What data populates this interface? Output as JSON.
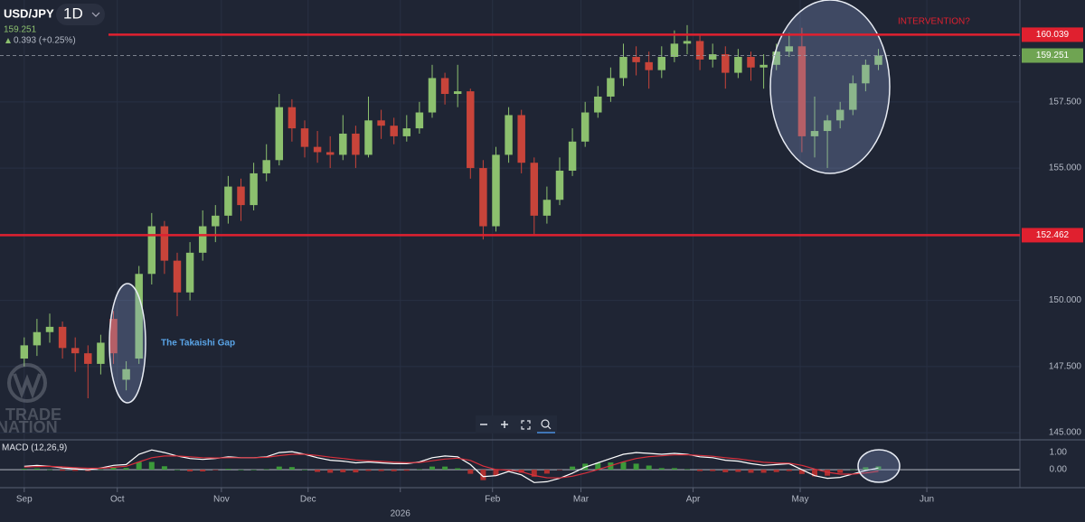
{
  "header": {
    "symbol": "USD/JPY",
    "interval": "1D",
    "price": 159.251,
    "change": "0.393 (+0.25%)",
    "watermark": [
      "TRADE",
      "NATION"
    ]
  },
  "chart_data": [
    {
      "type": "candlestick",
      "annotations": [
        "The Takaishi Gap",
        "INTERVENTION?"
      ],
      "up_color": "#8cc06e",
      "down_color": "#c8443a",
      "x": [
        0,
        3,
        6,
        9,
        12,
        15,
        18,
        21,
        24,
        27,
        30,
        33,
        36,
        39,
        42,
        45,
        48,
        51,
        54,
        57,
        60,
        63,
        66,
        69,
        72,
        75,
        78,
        81,
        84,
        87,
        90,
        93,
        96,
        99,
        102,
        105,
        108,
        111,
        114,
        117,
        120,
        123,
        126,
        129,
        132,
        135,
        138,
        141,
        144,
        147,
        150,
        153,
        156,
        159,
        162,
        165,
        168,
        171,
        174,
        177,
        180,
        183,
        186,
        189,
        192,
        195,
        198,
        201
      ],
      "open": [
        147.8,
        148.3,
        148.8,
        149.0,
        148.2,
        148.0,
        147.6,
        149.3,
        147.0,
        147.8,
        151.0,
        152.8,
        151.5,
        150.3,
        151.8,
        152.8,
        153.2,
        154.3,
        153.6,
        154.8,
        155.3,
        157.3,
        156.5,
        155.8,
        155.6,
        155.5,
        156.3,
        155.5,
        156.8,
        156.6,
        156.2,
        156.5,
        157.1,
        158.4,
        157.8,
        157.9,
        155.0,
        152.8,
        155.5,
        157.0,
        155.2,
        153.2,
        153.8,
        154.9,
        156.0,
        157.1,
        157.7,
        158.4,
        159.2,
        159.0,
        158.7,
        159.2,
        159.7,
        159.8,
        159.1,
        159.3,
        158.6,
        159.2,
        158.8,
        158.9,
        159.4,
        159.6,
        156.2,
        156.4,
        156.8,
        157.2,
        158.2,
        158.9
      ],
      "high": [
        148.6,
        149.3,
        149.5,
        149.2,
        148.6,
        148.3,
        148.7,
        149.6,
        147.7,
        151.3,
        153.3,
        153.0,
        151.8,
        152.2,
        153.4,
        153.6,
        154.7,
        154.6,
        155.2,
        155.9,
        157.8,
        157.6,
        156.8,
        156.4,
        156.2,
        157.0,
        156.6,
        157.7,
        157.2,
        156.9,
        157.0,
        157.5,
        158.9,
        158.6,
        158.9,
        158.0,
        155.3,
        155.8,
        157.3,
        157.2,
        155.4,
        154.3,
        155.4,
        156.5,
        157.5,
        158.1,
        158.8,
        159.7,
        159.6,
        159.4,
        159.6,
        160.2,
        160.4,
        160.0,
        159.7,
        159.6,
        159.5,
        159.4,
        159.3,
        159.7,
        160.1,
        160.3,
        157.7,
        157.0,
        157.5,
        158.5,
        159.1,
        159.5
      ],
      "low": [
        147.5,
        147.9,
        148.4,
        147.8,
        147.3,
        146.3,
        147.2,
        147.6,
        146.6,
        147.6,
        150.6,
        151.0,
        149.4,
        150.0,
        151.5,
        152.2,
        152.9,
        153.0,
        153.4,
        154.5,
        155.1,
        156.0,
        155.4,
        155.2,
        155.0,
        155.3,
        155.0,
        155.4,
        156.1,
        155.9,
        156.0,
        156.3,
        156.9,
        157.4,
        157.3,
        154.6,
        152.3,
        152.6,
        155.2,
        154.8,
        152.5,
        152.9,
        153.6,
        154.7,
        155.8,
        156.9,
        157.5,
        158.1,
        158.5,
        158.0,
        158.4,
        159.0,
        159.3,
        158.7,
        158.8,
        158.0,
        158.4,
        158.3,
        158.0,
        158.7,
        159.2,
        155.6,
        155.4,
        155.0,
        156.5,
        157.0,
        157.9,
        158.7
      ],
      "close": [
        148.3,
        148.8,
        149.0,
        148.2,
        148.0,
        147.6,
        148.4,
        148.0,
        147.4,
        151.0,
        152.8,
        151.5,
        150.3,
        151.8,
        152.8,
        153.2,
        154.3,
        153.6,
        154.8,
        155.3,
        157.3,
        156.5,
        155.8,
        155.6,
        155.5,
        156.3,
        155.5,
        156.8,
        156.6,
        156.2,
        156.5,
        157.1,
        158.4,
        157.8,
        157.9,
        155.0,
        152.8,
        155.5,
        157.0,
        155.2,
        153.2,
        153.8,
        154.9,
        156.0,
        157.1,
        157.7,
        158.4,
        159.2,
        159.0,
        158.7,
        159.2,
        159.7,
        159.8,
        159.1,
        159.3,
        158.6,
        159.2,
        158.8,
        158.9,
        159.4,
        159.6,
        156.2,
        156.4,
        156.8,
        157.2,
        158.2,
        158.9,
        159.25
      ],
      "xlim": [
        -5.7,
        234.3
      ],
      "ylim": [
        144.73,
        161.35
      ],
      "xticks": [
        {
          "value": 0,
          "label": "Sep"
        },
        {
          "value": 21.9,
          "label": "Oct"
        },
        {
          "value": 46.4,
          "label": "Nov"
        },
        {
          "value": 66.8,
          "label": "Dec"
        },
        {
          "value": 88.5,
          "label": "2026"
        },
        {
          "value": 110.2,
          "label": "Feb"
        },
        {
          "value": 131,
          "label": "Mar"
        },
        {
          "value": 157.4,
          "label": "Apr"
        },
        {
          "value": 182.6,
          "label": "May"
        },
        {
          "value": 212.4,
          "label": "Jun"
        }
      ],
      "yticks": [
        {
          "value": 145,
          "label": "145.000"
        },
        {
          "value": 147.5,
          "label": "147.500"
        },
        {
          "value": 150,
          "label": "150.000"
        },
        {
          "value": 152.5,
          "label": "152.500"
        },
        {
          "value": 155,
          "label": "155.000"
        },
        {
          "value": 157.5,
          "label": "157.500"
        }
      ],
      "levels": [
        {
          "value": 160.039,
          "color": "#e0202f"
        },
        {
          "value": 152.462,
          "color": "#e0202f"
        }
      ],
      "last_price": 159.251,
      "last_price_color": "#6fa452",
      "grid": true
    },
    {
      "type": "line",
      "title": "MACD (12,26,9)",
      "series": [
        {
          "color": "#ffffff",
          "values": [
            0.2,
            0.25,
            0.2,
            0.1,
            0.05,
            0.0,
            0.1,
            0.25,
            0.3,
            0.9,
            1.15,
            1.0,
            0.8,
            0.65,
            0.6,
            0.65,
            0.75,
            0.7,
            0.7,
            0.75,
            1.0,
            1.05,
            0.9,
            0.7,
            0.55,
            0.5,
            0.4,
            0.45,
            0.4,
            0.35,
            0.35,
            0.45,
            0.7,
            0.8,
            0.75,
            0.3,
            -0.4,
            -0.35,
            -0.1,
            -0.3,
            -0.75,
            -0.7,
            -0.5,
            -0.2,
            0.15,
            0.4,
            0.65,
            0.9,
            1.0,
            0.95,
            0.9,
            0.95,
            0.9,
            0.75,
            0.7,
            0.55,
            0.5,
            0.35,
            0.25,
            0.3,
            0.35,
            0.0,
            -0.35,
            -0.5,
            -0.45,
            -0.25,
            -0.05,
            0.1
          ]
        },
        {
          "color": "#d8303c",
          "values": [
            0.15,
            0.18,
            0.19,
            0.16,
            0.12,
            0.08,
            0.08,
            0.14,
            0.2,
            0.45,
            0.7,
            0.8,
            0.8,
            0.75,
            0.7,
            0.68,
            0.7,
            0.7,
            0.7,
            0.72,
            0.82,
            0.9,
            0.9,
            0.83,
            0.73,
            0.65,
            0.56,
            0.52,
            0.48,
            0.44,
            0.41,
            0.42,
            0.52,
            0.62,
            0.67,
            0.54,
            0.21,
            0.01,
            -0.03,
            -0.12,
            -0.34,
            -0.47,
            -0.48,
            -0.38,
            -0.2,
            0.01,
            0.23,
            0.46,
            0.65,
            0.76,
            0.81,
            0.86,
            0.87,
            0.83,
            0.78,
            0.7,
            0.63,
            0.53,
            0.43,
            0.39,
            0.38,
            0.25,
            0.04,
            -0.15,
            -0.26,
            -0.26,
            -0.19,
            -0.09
          ]
        }
      ],
      "histogram": [
        0.05,
        0.07,
        0.01,
        -0.06,
        -0.07,
        -0.08,
        0.02,
        0.11,
        0.1,
        0.45,
        0.45,
        0.2,
        0.0,
        -0.1,
        -0.1,
        -0.03,
        0.05,
        0.0,
        0.0,
        0.03,
        0.18,
        0.15,
        0.0,
        -0.13,
        -0.18,
        -0.15,
        -0.16,
        -0.07,
        -0.08,
        -0.09,
        -0.06,
        0.03,
        0.18,
        0.18,
        0.08,
        -0.24,
        -0.61,
        -0.36,
        -0.07,
        -0.18,
        -0.41,
        -0.23,
        -0.02,
        0.18,
        0.35,
        0.39,
        0.42,
        0.44,
        0.35,
        0.24,
        0.09,
        0.09,
        0.03,
        -0.08,
        -0.08,
        -0.15,
        -0.13,
        -0.18,
        -0.18,
        -0.14,
        -0.08,
        -0.25,
        -0.39,
        -0.35,
        -0.19,
        0.01,
        0.14,
        0.19
      ],
      "ylim": [
        -1.05,
        1.74
      ],
      "yticks": [
        {
          "value": 0,
          "label": "0.00"
        },
        {
          "value": 1,
          "label": "1.00"
        }
      ]
    }
  ]
}
